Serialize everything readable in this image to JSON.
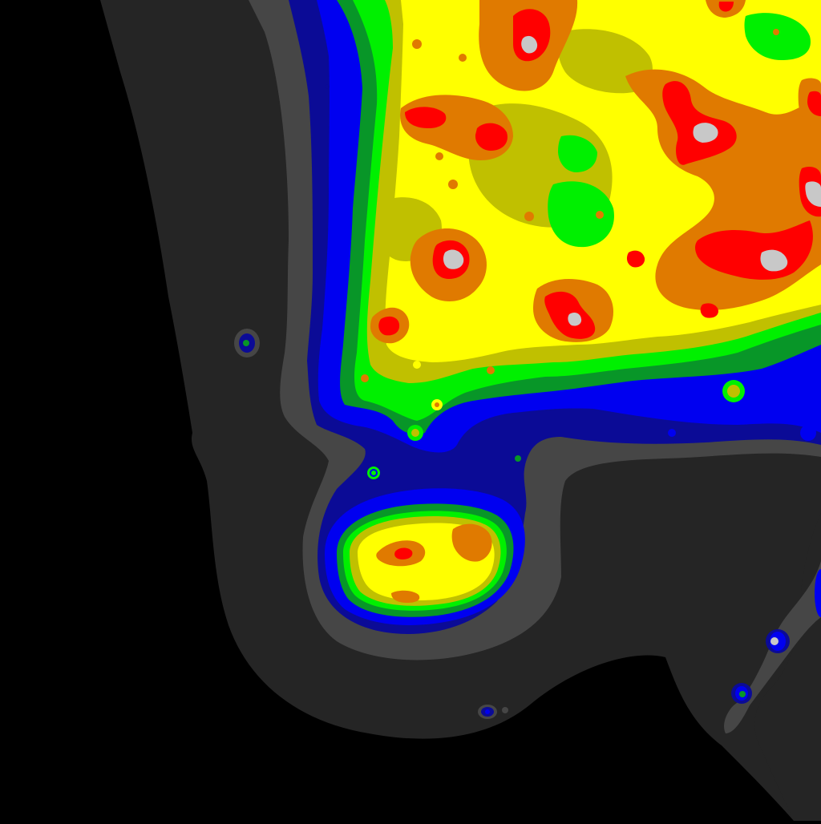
{
  "map": {
    "kind": "light-pollution-contour-map",
    "palette": {
      "background": "#000000",
      "level_1": "#252525",
      "level_2": "#464646",
      "level_3": "#0b0b96",
      "level_4": "#0000f0",
      "level_5": "#089628",
      "level_6": "#00f000",
      "level_7": "#c0c000",
      "level_8": "#ffff00",
      "level_9": "#e07a00",
      "level_10": "#e8e000",
      "level_11": "#ff0000",
      "level_12": "#c8c8c8"
    }
  }
}
